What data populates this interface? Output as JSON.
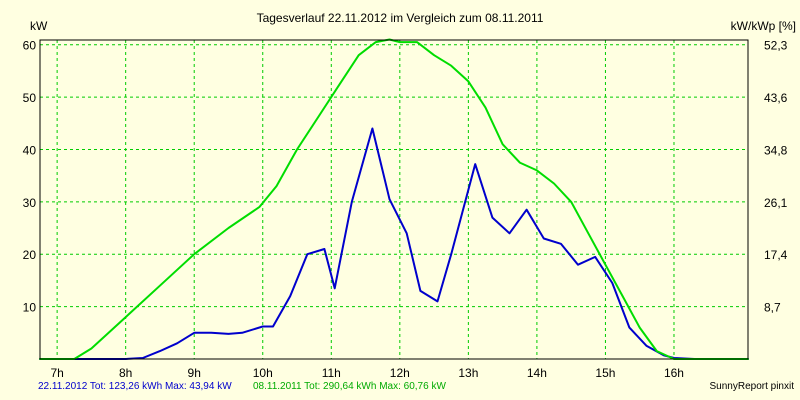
{
  "chart_data": {
    "type": "line",
    "title": "Tagesverlauf 22.11.2012 im Vergleich zum 08.11.2011",
    "left_axis_label": "kW",
    "right_axis_label": "kW/kWp [%]",
    "ylim": [
      0,
      60.9
    ],
    "xlim": [
      6.75,
      17.08
    ],
    "left_ticks": [
      "10",
      "20",
      "30",
      "40",
      "50",
      "60"
    ],
    "left_tick_values": [
      10,
      20,
      30,
      40,
      50,
      60
    ],
    "right_ticks": [
      "8,7",
      "17,4",
      "26,1",
      "34,8",
      "43,6",
      "52,3"
    ],
    "x_ticks": [
      "7h",
      "8h",
      "9h",
      "10h",
      "11h",
      "12h",
      "13h",
      "14h",
      "15h",
      "16h"
    ],
    "x_tick_values": [
      7,
      8,
      9,
      10,
      11,
      12,
      13,
      14,
      15,
      16
    ],
    "grid": true,
    "colors": {
      "background": "#ffffe1",
      "grid": "#00cc00",
      "series_2012": "#0000cc",
      "series_2011": "#00dd00"
    },
    "series": [
      {
        "name": "22.11.2012",
        "color": "#0000cc",
        "x": [
          6.75,
          7.5,
          8.0,
          8.25,
          8.5,
          8.75,
          9.0,
          9.25,
          9.5,
          9.7,
          10.0,
          10.15,
          10.4,
          10.65,
          10.9,
          11.05,
          11.3,
          11.6,
          11.85,
          12.1,
          12.3,
          12.55,
          12.75,
          13.1,
          13.35,
          13.6,
          13.85,
          14.1,
          14.35,
          14.6,
          14.85,
          15.1,
          15.35,
          15.6,
          15.85,
          16.0,
          16.3,
          16.5,
          17.08
        ],
        "y": [
          0,
          0,
          0,
          0.2,
          1.5,
          3,
          5,
          5,
          4.8,
          5,
          6.2,
          6.2,
          12,
          20,
          21,
          13.5,
          30,
          44,
          30.5,
          24,
          13,
          11,
          20,
          37.2,
          27,
          24,
          28.5,
          23,
          22,
          18,
          19.5,
          14.5,
          6,
          2.5,
          0.7,
          0.2,
          0,
          0,
          0
        ]
      },
      {
        "name": "08.11.2011",
        "color": "#00dd00",
        "x": [
          6.75,
          7.25,
          7.5,
          8.0,
          8.5,
          9.0,
          9.5,
          9.95,
          10.2,
          10.5,
          10.8,
          11.1,
          11.4,
          11.65,
          11.85,
          12.0,
          12.25,
          12.5,
          12.75,
          13.0,
          13.25,
          13.5,
          13.75,
          14.0,
          14.25,
          14.5,
          14.75,
          15.0,
          15.25,
          15.5,
          15.75,
          16.0,
          16.25,
          16.4,
          16.75,
          17.08
        ],
        "y": [
          0,
          0,
          2,
          8,
          14,
          20,
          25,
          29,
          33,
          40,
          46,
          52,
          58,
          60.5,
          61,
          60.5,
          60.5,
          58,
          56,
          53,
          48,
          41,
          37.5,
          36,
          33.5,
          30,
          24,
          18,
          12,
          6,
          1.5,
          0,
          0,
          0,
          0,
          0
        ]
      }
    ]
  },
  "footer": {
    "legend_2012": "22.11.2012 Tot: 123,26 kWh Max: 43,94 kW",
    "legend_2011": "08.11.2011 Tot: 290,64 kWh Max: 60,76 kW",
    "credit": "SunnyReport pinxit"
  }
}
